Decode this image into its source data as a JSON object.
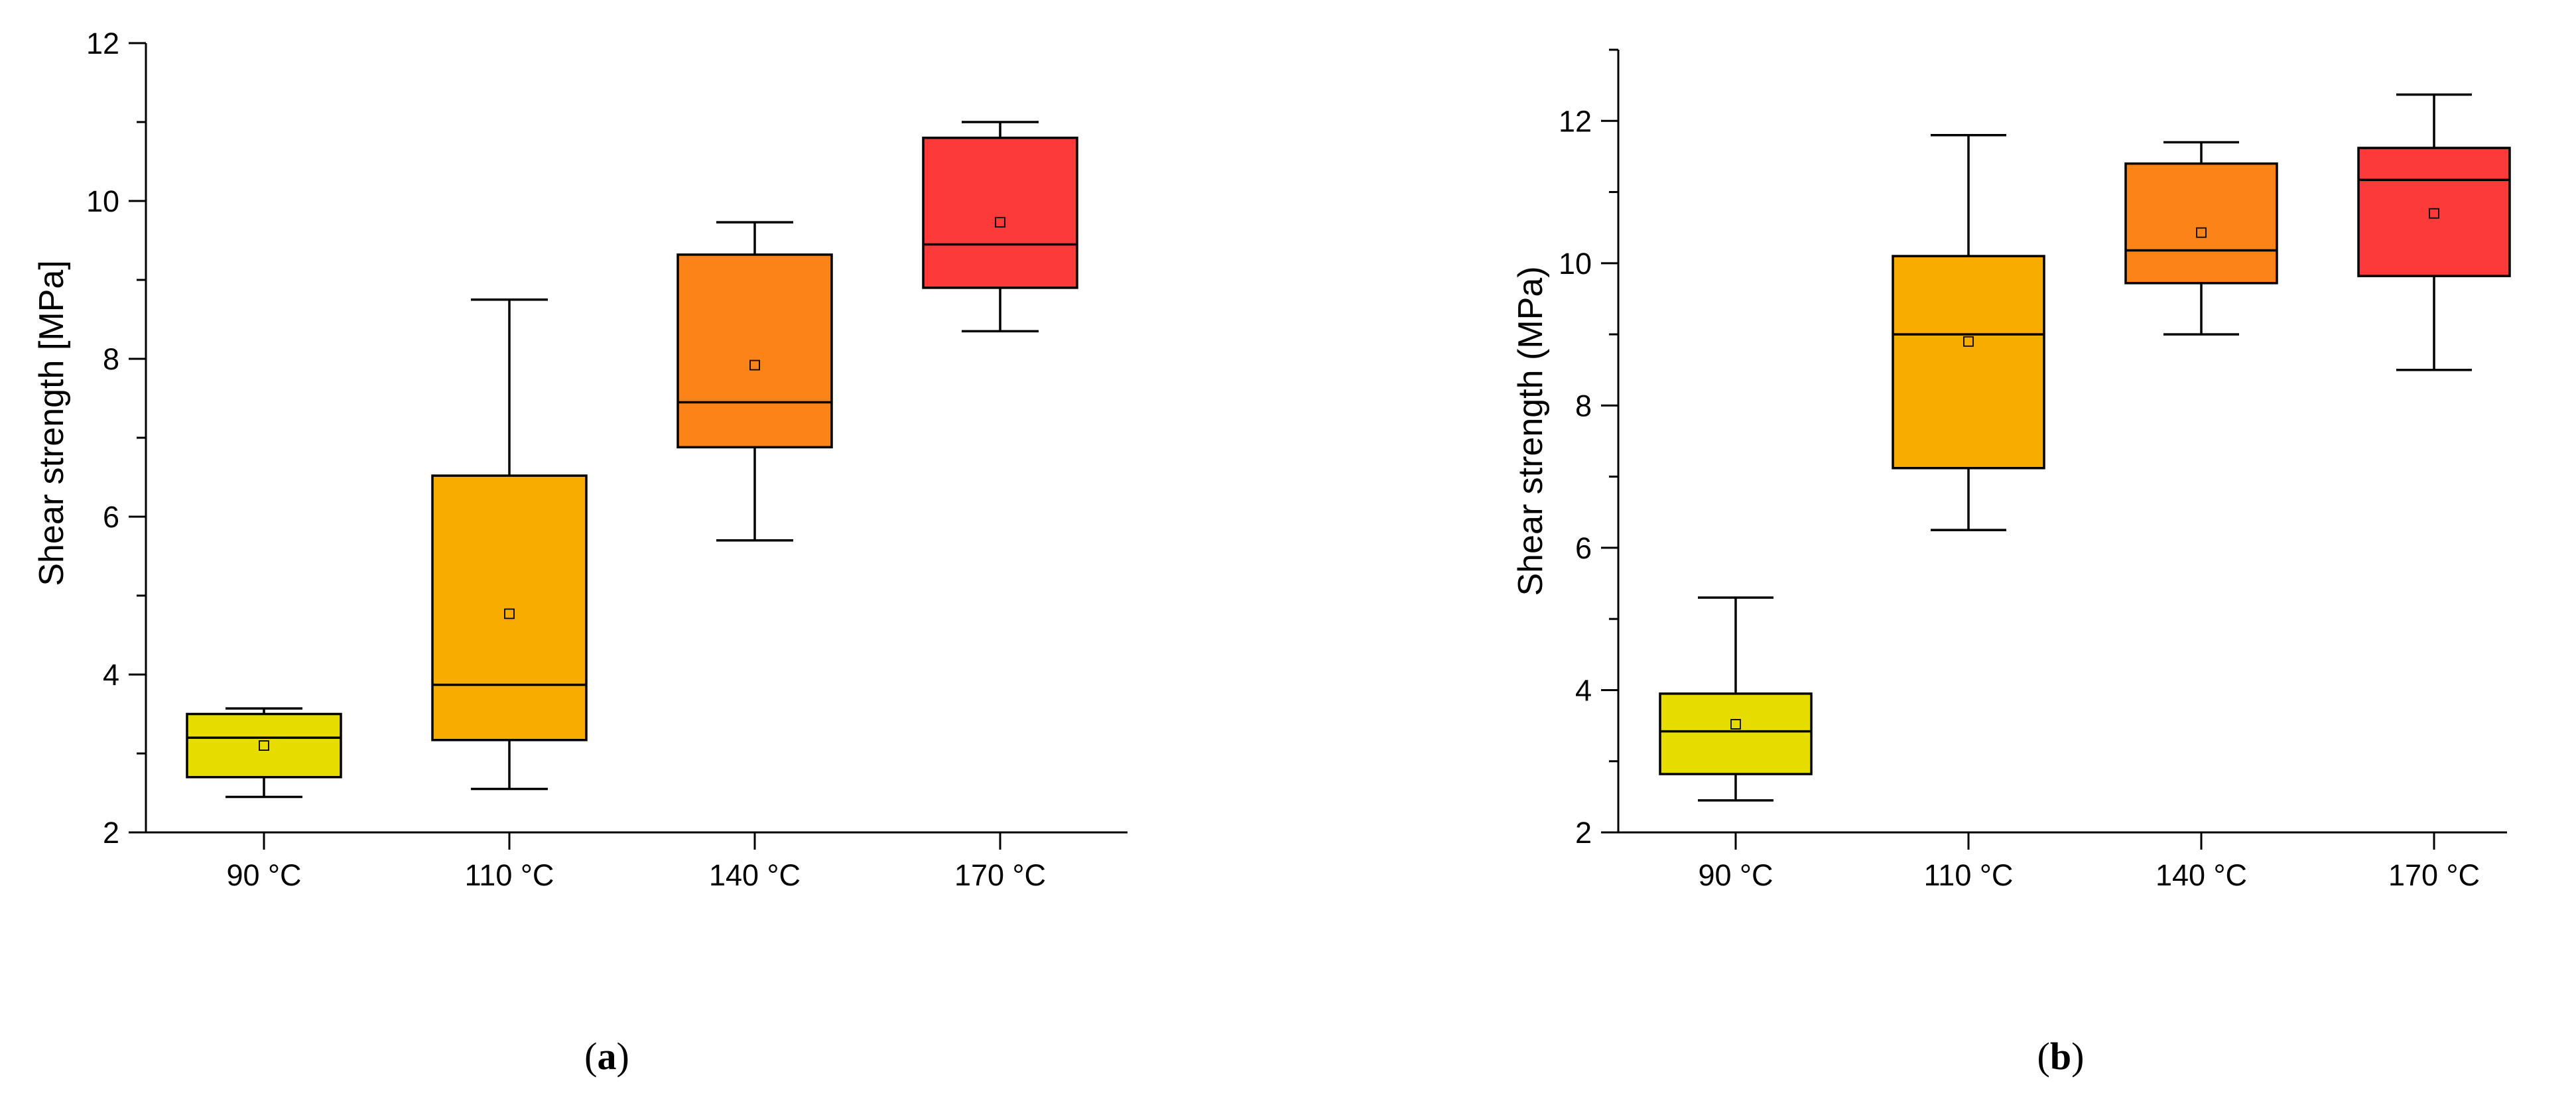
{
  "chart_data": [
    {
      "type": "box",
      "panel": "(a)",
      "ylabel": "Shear strength [MPa]",
      "xlabel": "",
      "ylim": [
        2,
        12
      ],
      "yticks": [
        2,
        4,
        6,
        8,
        10,
        12
      ],
      "categories": [
        "90 °C",
        "110 °C",
        "140 °C",
        "170 °C"
      ],
      "colors": [
        "#e6dc00",
        "#f8ac00",
        "#fb8317",
        "#fd3a3a"
      ],
      "boxes": [
        {
          "category": "90 °C",
          "whisker_low": 2.45,
          "q1": 2.7,
          "median": 3.2,
          "q3": 3.5,
          "whisker_high": 3.57,
          "mean": 3.1
        },
        {
          "category": "110 °C",
          "whisker_low": 2.55,
          "q1": 3.17,
          "median": 3.87,
          "q3": 6.52,
          "whisker_high": 8.75,
          "mean": 4.77
        },
        {
          "category": "140 °C",
          "whisker_low": 5.7,
          "q1": 6.88,
          "median": 7.45,
          "q3": 9.32,
          "whisker_high": 9.73,
          "mean": 7.92
        },
        {
          "category": "170 °C",
          "whisker_low": 8.35,
          "q1": 8.9,
          "median": 9.45,
          "q3": 10.8,
          "whisker_high": 11.0,
          "mean": 9.73
        }
      ]
    },
    {
      "type": "box",
      "panel": "(b)",
      "ylabel": "Shear strength (MPa)",
      "xlabel": "",
      "ylim": [
        2,
        13
      ],
      "yticks": [
        2,
        4,
        6,
        8,
        10,
        12
      ],
      "categories": [
        "90 °C",
        "110 °C",
        "140 °C",
        "170 °C"
      ],
      "colors": [
        "#e6dc00",
        "#f8ac00",
        "#fb8317",
        "#fd3a3a"
      ],
      "boxes": [
        {
          "category": "90 °C",
          "whisker_low": 2.45,
          "q1": 2.82,
          "median": 3.42,
          "q3": 3.95,
          "whisker_high": 5.3,
          "mean": 3.52
        },
        {
          "category": "110 °C",
          "whisker_low": 6.25,
          "q1": 7.12,
          "median": 9.0,
          "q3": 10.1,
          "whisker_high": 11.8,
          "mean": 8.9
        },
        {
          "category": "140 °C",
          "whisker_low": 9.0,
          "q1": 9.72,
          "median": 10.18,
          "q3": 11.4,
          "whisker_high": 11.7,
          "mean": 10.43
        },
        {
          "category": "170 °C",
          "whisker_low": 8.5,
          "q1": 9.82,
          "median": 11.17,
          "q3": 11.62,
          "whisker_high": 12.37,
          "mean": 10.7
        }
      ]
    }
  ]
}
